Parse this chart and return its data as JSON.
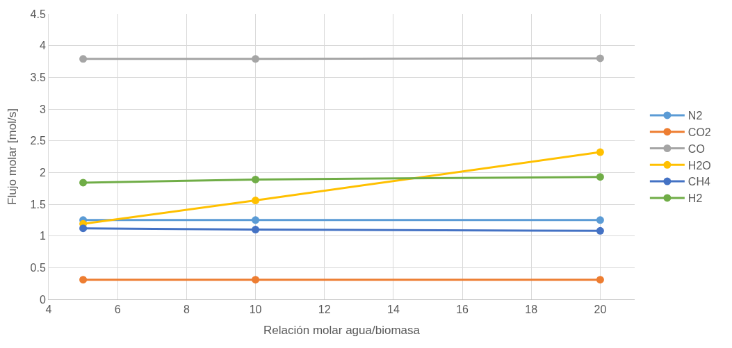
{
  "chart_data": {
    "type": "line",
    "xlabel": "Relación molar agua/biomasa",
    "ylabel": "Flujo molar [mol/s]",
    "x": [
      5,
      10,
      20
    ],
    "series": [
      {
        "name": "N2",
        "color": "#5b9bd5",
        "values": [
          1.25,
          1.25,
          1.25
        ]
      },
      {
        "name": "CO2",
        "color": "#ed7d31",
        "values": [
          0.31,
          0.31,
          0.31
        ]
      },
      {
        "name": "CO",
        "color": "#a5a5a5",
        "values": [
          3.79,
          3.79,
          3.8
        ]
      },
      {
        "name": "H2O",
        "color": "#ffc000",
        "values": [
          1.19,
          1.56,
          2.32
        ]
      },
      {
        "name": "CH4",
        "color": "#4472c4",
        "values": [
          1.12,
          1.1,
          1.08
        ]
      },
      {
        "name": "H2",
        "color": "#70ad47",
        "values": [
          1.84,
          1.89,
          1.93
        ]
      }
    ],
    "xlim": [
      4,
      21
    ],
    "xticks": [
      4,
      6,
      8,
      10,
      12,
      14,
      16,
      18,
      20
    ],
    "ylim": [
      0,
      4.5
    ],
    "yticks": [
      0,
      0.5,
      1,
      1.5,
      2,
      2.5,
      3,
      3.5,
      4,
      4.5
    ],
    "grid": true,
    "legend": "right",
    "marker": "circle",
    "line_style": "solid"
  }
}
